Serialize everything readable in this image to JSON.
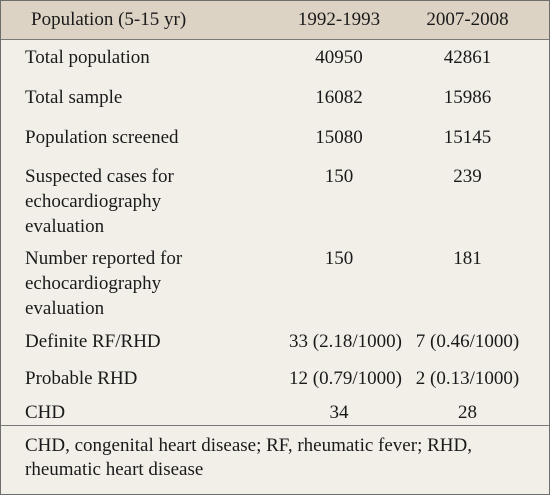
{
  "table": {
    "headers": [
      "Population (5-15 yr)",
      "1992-1993",
      "2007-2008"
    ],
    "rows": [
      {
        "label": "Total population",
        "v1": "40950",
        "v2": "42861"
      },
      {
        "label": "Total sample",
        "v1": "16082",
        "v2": "15986"
      },
      {
        "label": "Population screened",
        "v1": "15080",
        "v2": "15145"
      },
      {
        "label": "Suspected cases for echocardiography evaluation",
        "v1": "150",
        "v2": "239"
      },
      {
        "label": "Number reported for echocardiography evaluation",
        "v1": "150",
        "v2": "181"
      },
      {
        "label": "Definite RF/RHD",
        "v1": "33 (2.18/1000)",
        "v2": "7 (0.46/1000)"
      },
      {
        "label": "Probable RHD",
        "v1": "12 (0.79/1000)",
        "v2": "2 (0.13/1000)"
      },
      {
        "label": "CHD",
        "v1": "34",
        "v2": "28"
      }
    ],
    "footnote": "CHD, congenital heart disease; RF, rheumatic fever; RHD, rheumatic heart disease"
  }
}
